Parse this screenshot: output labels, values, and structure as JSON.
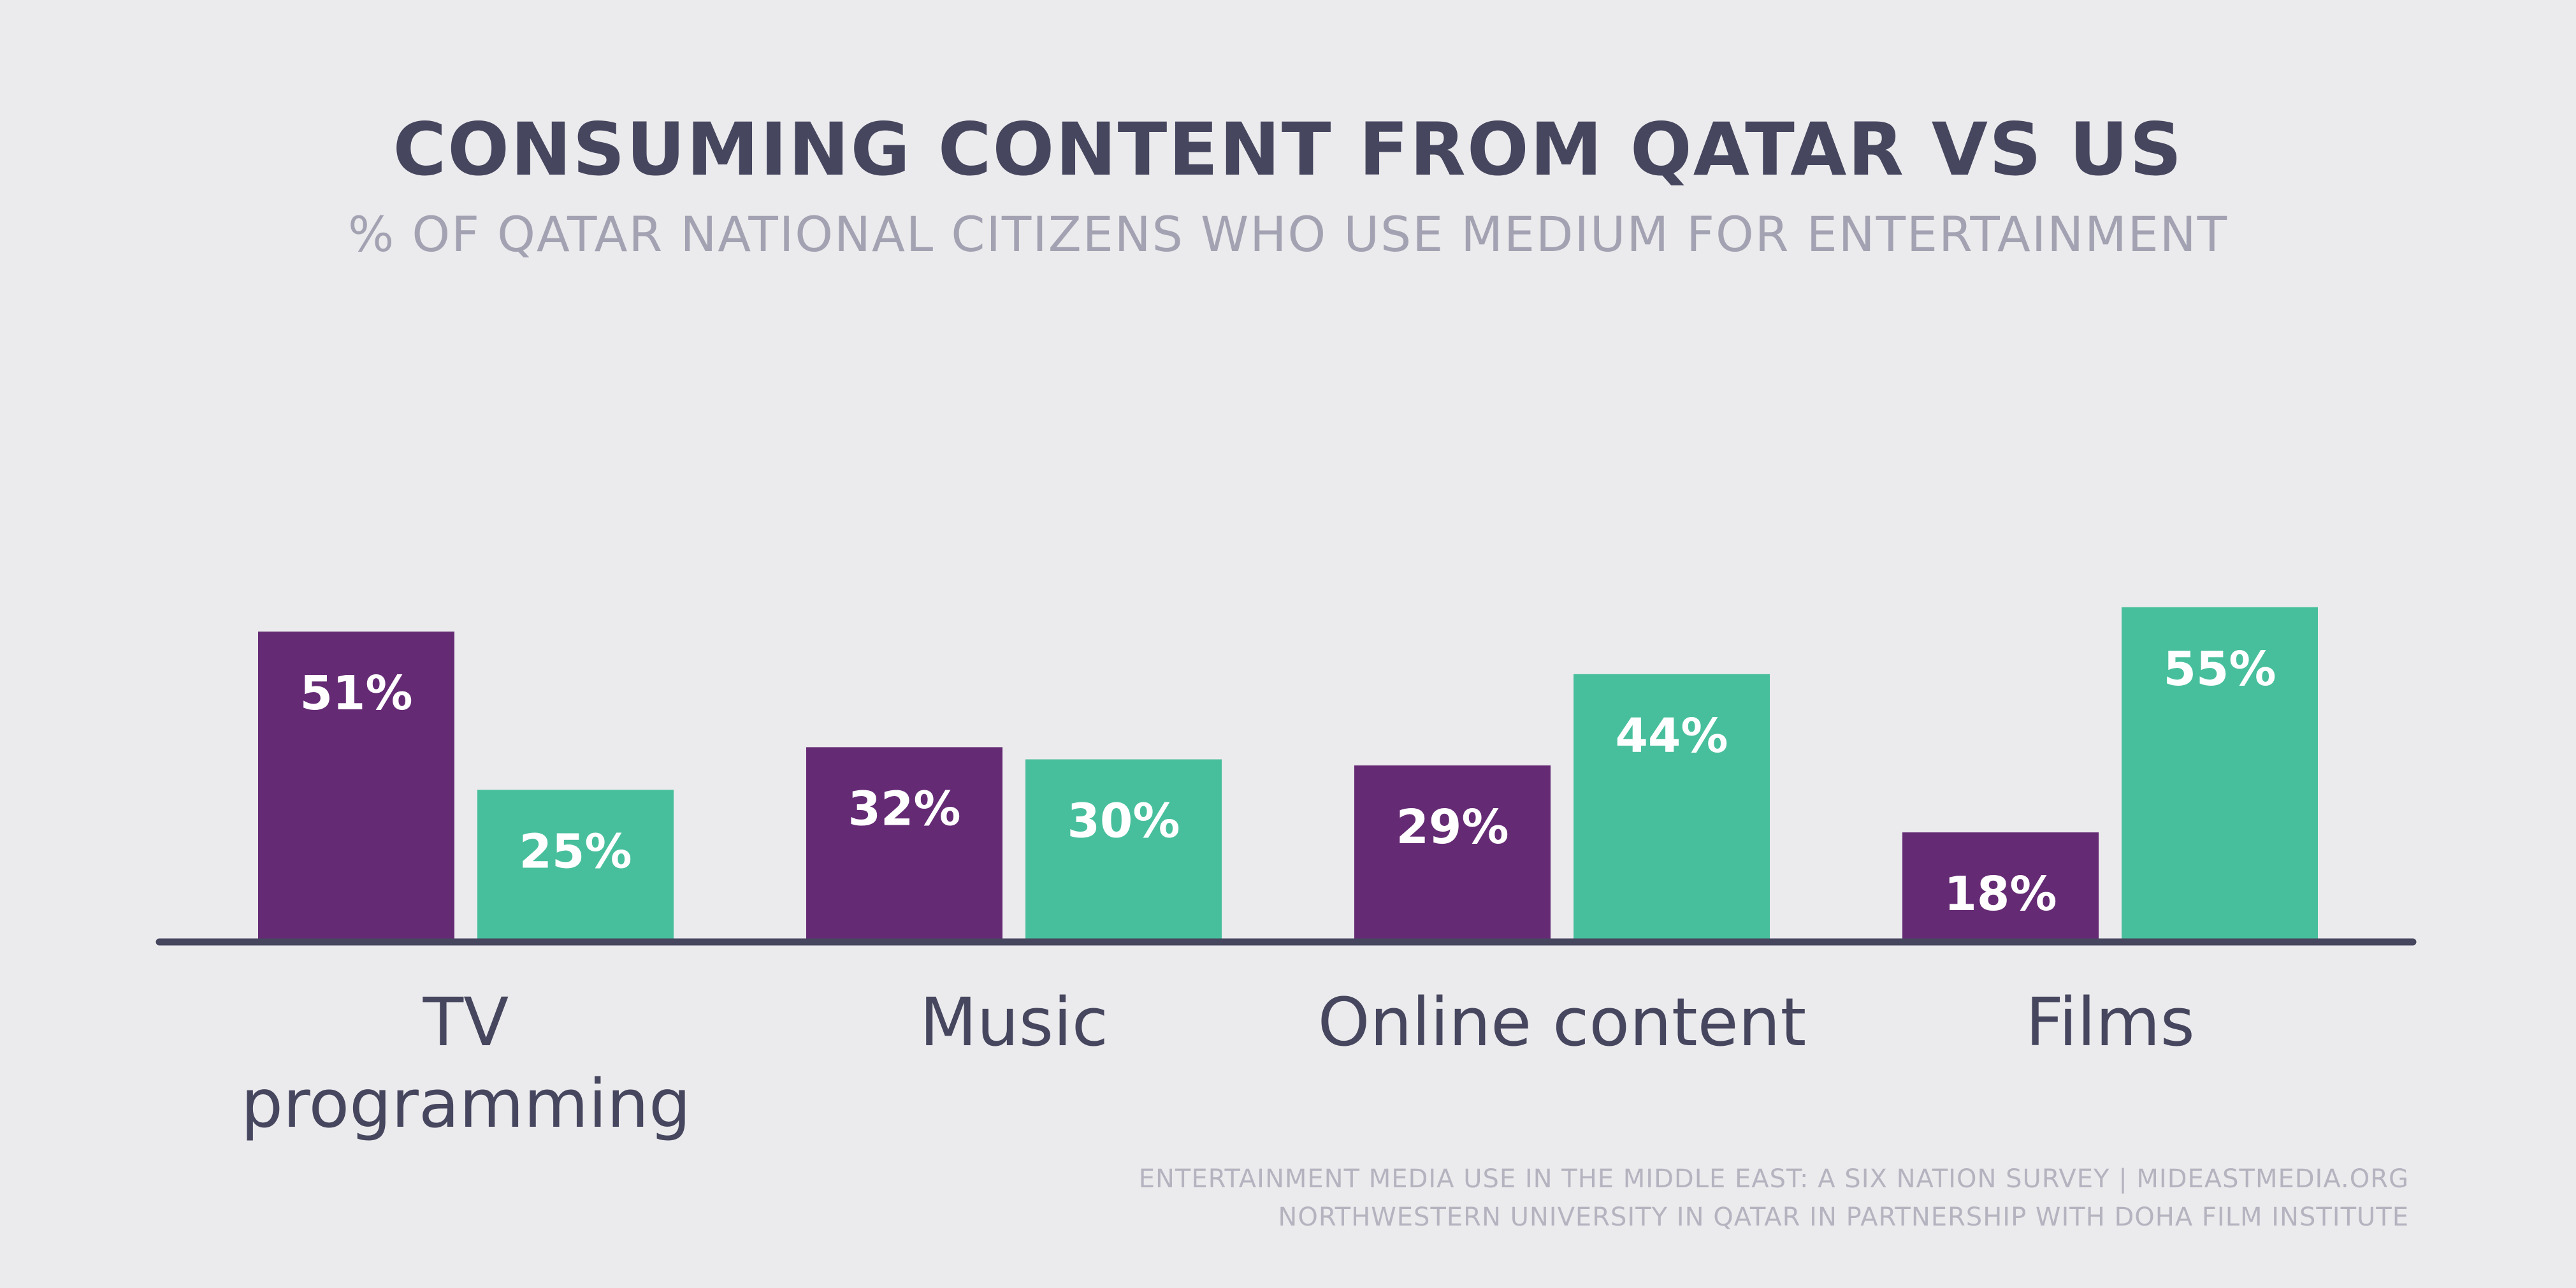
{
  "colors": {
    "background": "#ebebed",
    "title": "#46465f",
    "subtitle": "#a3a2b2",
    "qatar_bar": "#652a74",
    "us_bar": "#48bf9c",
    "bar_label": "#ffffff",
    "axis": "#46465f",
    "category_label": "#46465f",
    "source": "#b4b3bf"
  },
  "chart_data": {
    "type": "bar",
    "title": "CONSUMING CONTENT FROM QATAR VS US",
    "subtitle": "% OF QATAR NATIONAL CITIZENS WHO USE MEDIUM FOR ENTERTAINMENT",
    "categories": [
      [
        "TV",
        "programming"
      ],
      [
        "Music"
      ],
      [
        "Online content"
      ],
      [
        "Films"
      ]
    ],
    "series": [
      {
        "values": [
          51,
          32,
          29,
          18
        ],
        "labels": [
          "51%",
          "32%",
          "29%",
          "18%"
        ]
      },
      {
        "values": [
          25,
          30,
          44,
          55
        ],
        "labels": [
          "25%",
          "30%",
          "44%",
          "55%"
        ]
      }
    ],
    "ylim": [
      0,
      55
    ],
    "grid": false,
    "legend": "none"
  },
  "source": {
    "line1": "ENTERTAINMENT MEDIA USE IN THE MIDDLE EAST: A SIX NATION SURVEY | MIDEASTMEDIA.ORG",
    "line2": "NORTHWESTERN UNIVERSITY IN QATAR IN PARTNERSHIP WITH DOHA FILM INSTITUTE"
  }
}
